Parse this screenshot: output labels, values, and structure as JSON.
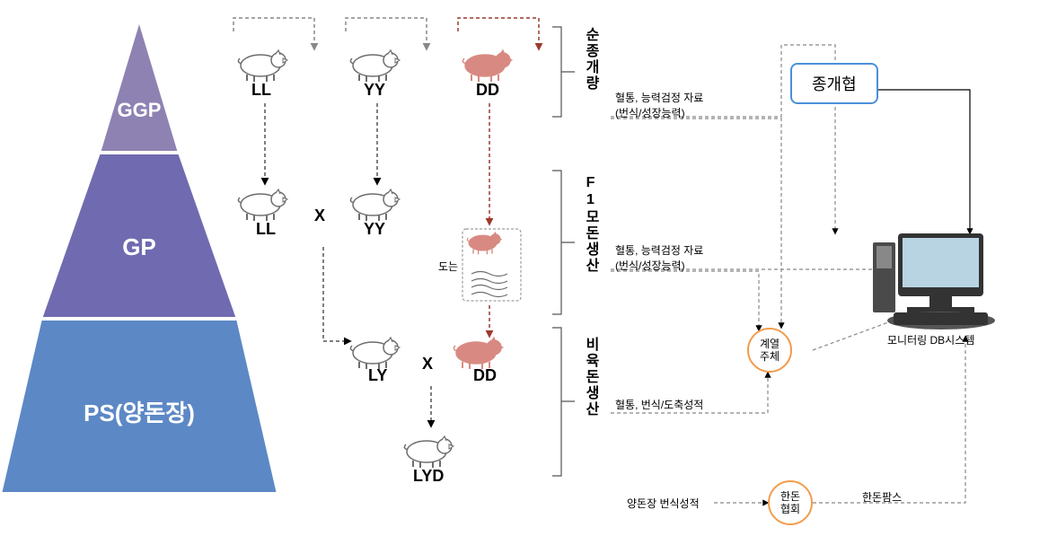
{
  "pyramid": {
    "top_label": "GGP",
    "mid_label": "GP",
    "bot_label": "PS(양돈장)",
    "top_fill": "#8e82b2",
    "mid_fill": "#706bb0",
    "bot_fill": "#5c88c5",
    "stroke": "#ffffff"
  },
  "pigs": {
    "ggp": [
      {
        "label": "LL",
        "filled": false
      },
      {
        "label": "YY",
        "filled": false
      },
      {
        "label": "DD",
        "filled": true
      }
    ],
    "gp": [
      {
        "label": "LL",
        "filled": false
      },
      {
        "label": "YY",
        "filled": false
      }
    ],
    "gp_cross": "X",
    "gp_boxed_label": "도는",
    "ps": [
      {
        "label": "LY",
        "filled": false
      },
      {
        "label": "DD",
        "filled": true
      }
    ],
    "ps_cross": "X",
    "ps_result": {
      "label": "LYD",
      "filled": false
    },
    "filled_color": "#d88a82",
    "outline_color": "#6d6d6d"
  },
  "vlabels": {
    "top": "순종개량",
    "mid": "F1모돈생산",
    "bot": "비육돈생산"
  },
  "flow_labels": {
    "top": "혈통, 능력검정 자료\n(번식/성장능력)",
    "mid": "혈통, 능력검정 자료\n(번식/성장능력)",
    "bot": "혈통, 번식/도축성적",
    "farm": "양돈장 번식성적",
    "hps": "한돈팜스"
  },
  "nodes": {
    "jonggaehyeop": "종개협",
    "gyeyeol": "계열\n주체",
    "handon": "한돈\n협회",
    "monitor": "모니터링 DB시스템"
  },
  "colors": {
    "dashed": "#888888",
    "dd_line": "#9c3a2c",
    "bracket": "#555555",
    "node_border": "#f29c4c",
    "box_border": "#4a90d9"
  }
}
